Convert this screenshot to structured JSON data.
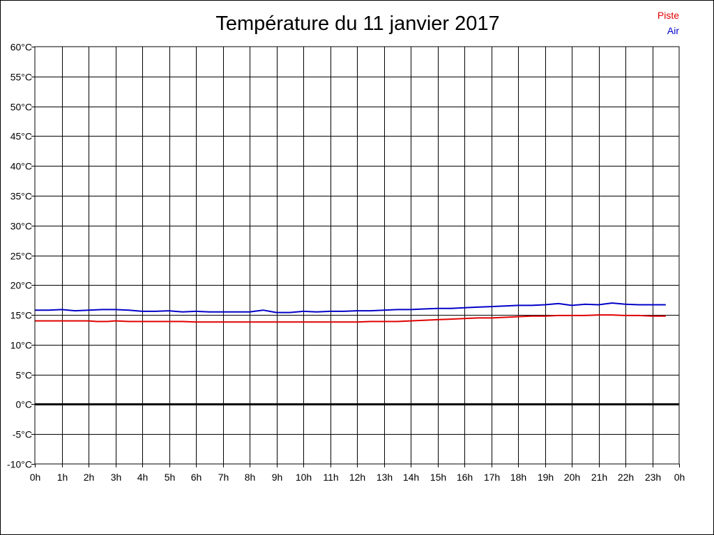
{
  "chart_data": {
    "type": "line",
    "title": "Température du 11 janvier 2017",
    "x_tick_labels": [
      "0h",
      "1h",
      "2h",
      "3h",
      "4h",
      "5h",
      "6h",
      "7h",
      "8h",
      "9h",
      "10h",
      "11h",
      "12h",
      "13h",
      "14h",
      "15h",
      "16h",
      "17h",
      "18h",
      "19h",
      "20h",
      "21h",
      "22h",
      "23h",
      "0h"
    ],
    "xlim": [
      0,
      24
    ],
    "y_tick_labels": [
      "60°C",
      "55°C",
      "50°C",
      "45°C",
      "40°C",
      "35°C",
      "30°C",
      "25°C",
      "20°C",
      "15°C",
      "10°C",
      "5°C",
      "0°C",
      "-5°C",
      "-10°C"
    ],
    "ylim": [
      -10,
      60
    ],
    "y_step": 5,
    "grid": true,
    "zero_line": true,
    "legend_position": "top-right",
    "series": [
      {
        "name": "Piste",
        "color": "#e00000",
        "x": [
          0,
          0.5,
          1,
          1.5,
          2,
          2.3,
          2.7,
          3,
          3.5,
          4,
          4.5,
          5,
          5.5,
          6,
          6.5,
          7,
          7.5,
          8,
          8.5,
          9,
          9.5,
          10,
          10.5,
          11,
          11.5,
          12,
          12.5,
          13,
          13.5,
          14,
          14.5,
          15,
          15.5,
          16,
          16.5,
          17,
          17.5,
          18,
          18.5,
          19,
          19.5,
          20,
          20.5,
          21,
          21.5,
          22,
          22.5,
          23,
          23.5
        ],
        "values": [
          14.0,
          14.0,
          14.0,
          14.0,
          14.0,
          13.9,
          13.9,
          14.0,
          13.9,
          13.9,
          13.9,
          13.9,
          13.9,
          13.8,
          13.8,
          13.8,
          13.8,
          13.8,
          13.8,
          13.8,
          13.8,
          13.8,
          13.8,
          13.8,
          13.8,
          13.8,
          13.9,
          13.9,
          13.9,
          14.0,
          14.1,
          14.2,
          14.3,
          14.4,
          14.5,
          14.5,
          14.6,
          14.7,
          14.8,
          14.8,
          14.9,
          14.9,
          14.9,
          15.0,
          15.0,
          14.9,
          14.9,
          14.8,
          14.8
        ]
      },
      {
        "name": "Air",
        "color": "#0000c8",
        "x": [
          0,
          0.5,
          1,
          1.5,
          2,
          2.5,
          3,
          3.5,
          4,
          4.5,
          5,
          5.5,
          6,
          6.5,
          7,
          7.5,
          8,
          8.5,
          9,
          9.5,
          10,
          10.5,
          11,
          11.5,
          12,
          12.5,
          13,
          13.5,
          14,
          14.5,
          15,
          15.5,
          16,
          16.5,
          17,
          17.5,
          18,
          18.5,
          19,
          19.5,
          20,
          20.5,
          21,
          21.5,
          22,
          22.5,
          23,
          23.5
        ],
        "values": [
          15.8,
          15.8,
          15.9,
          15.7,
          15.8,
          15.9,
          15.9,
          15.8,
          15.6,
          15.6,
          15.7,
          15.5,
          15.6,
          15.5,
          15.5,
          15.5,
          15.5,
          15.8,
          15.4,
          15.4,
          15.6,
          15.5,
          15.6,
          15.6,
          15.7,
          15.7,
          15.8,
          15.9,
          15.9,
          16.0,
          16.1,
          16.1,
          16.2,
          16.3,
          16.4,
          16.5,
          16.6,
          16.6,
          16.7,
          16.9,
          16.6,
          16.8,
          16.7,
          17.0,
          16.8,
          16.7,
          16.7,
          16.7
        ]
      }
    ]
  }
}
